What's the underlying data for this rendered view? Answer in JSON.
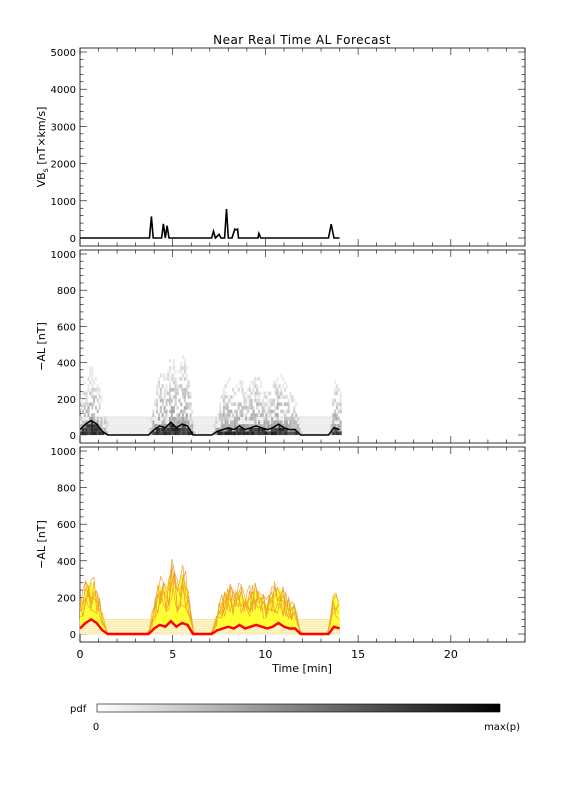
{
  "title": "Near Real Time AL Forecast",
  "chart_data": [
    {
      "type": "line",
      "ylabel": "VB<sub>s</sub> [nT×km/s]",
      "ylabel_main": "VB",
      "ylabel_sub": "s",
      "ylabel_rest": " [nT×km/s]",
      "ylim": [
        0,
        5000
      ],
      "yticks": [
        0,
        1000,
        2000,
        3000,
        4000,
        5000
      ],
      "xlim": [
        0,
        24
      ],
      "series": [
        {
          "color": "#000000",
          "x": [
            0,
            3.75,
            3.85,
            3.95,
            4.4,
            4.5,
            4.6,
            4.7,
            4.8,
            7.1,
            7.2,
            7.3,
            7.5,
            7.6,
            7.8,
            7.9,
            8.0,
            8.2,
            8.35,
            8.4,
            8.5,
            8.55,
            9.6,
            9.65,
            9.75,
            13.4,
            13.55,
            13.7,
            14.0
          ],
          "y": [
            0,
            0,
            580,
            0,
            0,
            380,
            0,
            330,
            0,
            0,
            180,
            0,
            100,
            0,
            0,
            780,
            0,
            0,
            240,
            220,
            240,
            0,
            0,
            120,
            0,
            0,
            370,
            0,
            0
          ]
        }
      ]
    },
    {
      "type": "heatmap",
      "ylabel": "−AL [nT]",
      "ylim": [
        0,
        1000
      ],
      "yticks": [
        0,
        200,
        400,
        600,
        800,
        1000
      ],
      "xlim": [
        0,
        24
      ],
      "median_x": [
        0,
        0.3,
        0.6,
        0.9,
        1.2,
        1.5,
        3.7,
        4.0,
        4.3,
        4.6,
        4.9,
        5.2,
        5.5,
        5.8,
        6.1,
        7.1,
        7.4,
        7.7,
        8.0,
        8.3,
        8.6,
        8.9,
        9.2,
        9.5,
        9.8,
        10.1,
        10.4,
        10.7,
        11.0,
        11.3,
        11.6,
        11.9,
        13.4,
        13.7,
        14.0
      ],
      "median_y": [
        30,
        60,
        80,
        60,
        20,
        0,
        0,
        30,
        50,
        40,
        70,
        40,
        60,
        50,
        0,
        0,
        20,
        30,
        40,
        30,
        50,
        30,
        40,
        50,
        40,
        30,
        40,
        60,
        40,
        30,
        30,
        0,
        0,
        40,
        30
      ],
      "upper_y": [
        180,
        310,
        360,
        270,
        140,
        0,
        0,
        200,
        330,
        290,
        440,
        300,
        410,
        320,
        0,
        0,
        140,
        240,
        300,
        230,
        300,
        220,
        280,
        300,
        250,
        200,
        280,
        320,
        260,
        200,
        170,
        0,
        0,
        280,
        200
      ],
      "band_y": [
        0,
        100
      ]
    },
    {
      "type": "area",
      "ylabel": "−AL [nT]",
      "xlabel": "Time [min]",
      "ylim": [
        0,
        1000
      ],
      "yticks": [
        0,
        200,
        400,
        600,
        800,
        1000
      ],
      "xlim": [
        0,
        24
      ],
      "xticks": [
        0,
        5,
        10,
        15,
        20
      ],
      "median_color": "#ff0000",
      "fill_color": "#ffff33",
      "envelope_color": "#f0a030",
      "band_y": [
        0,
        80
      ]
    }
  ],
  "colorbar": {
    "label": "pdf",
    "min_label": "0",
    "max_label": "max(p)",
    "from_color": "#ffffff",
    "to_color": "#000000"
  }
}
